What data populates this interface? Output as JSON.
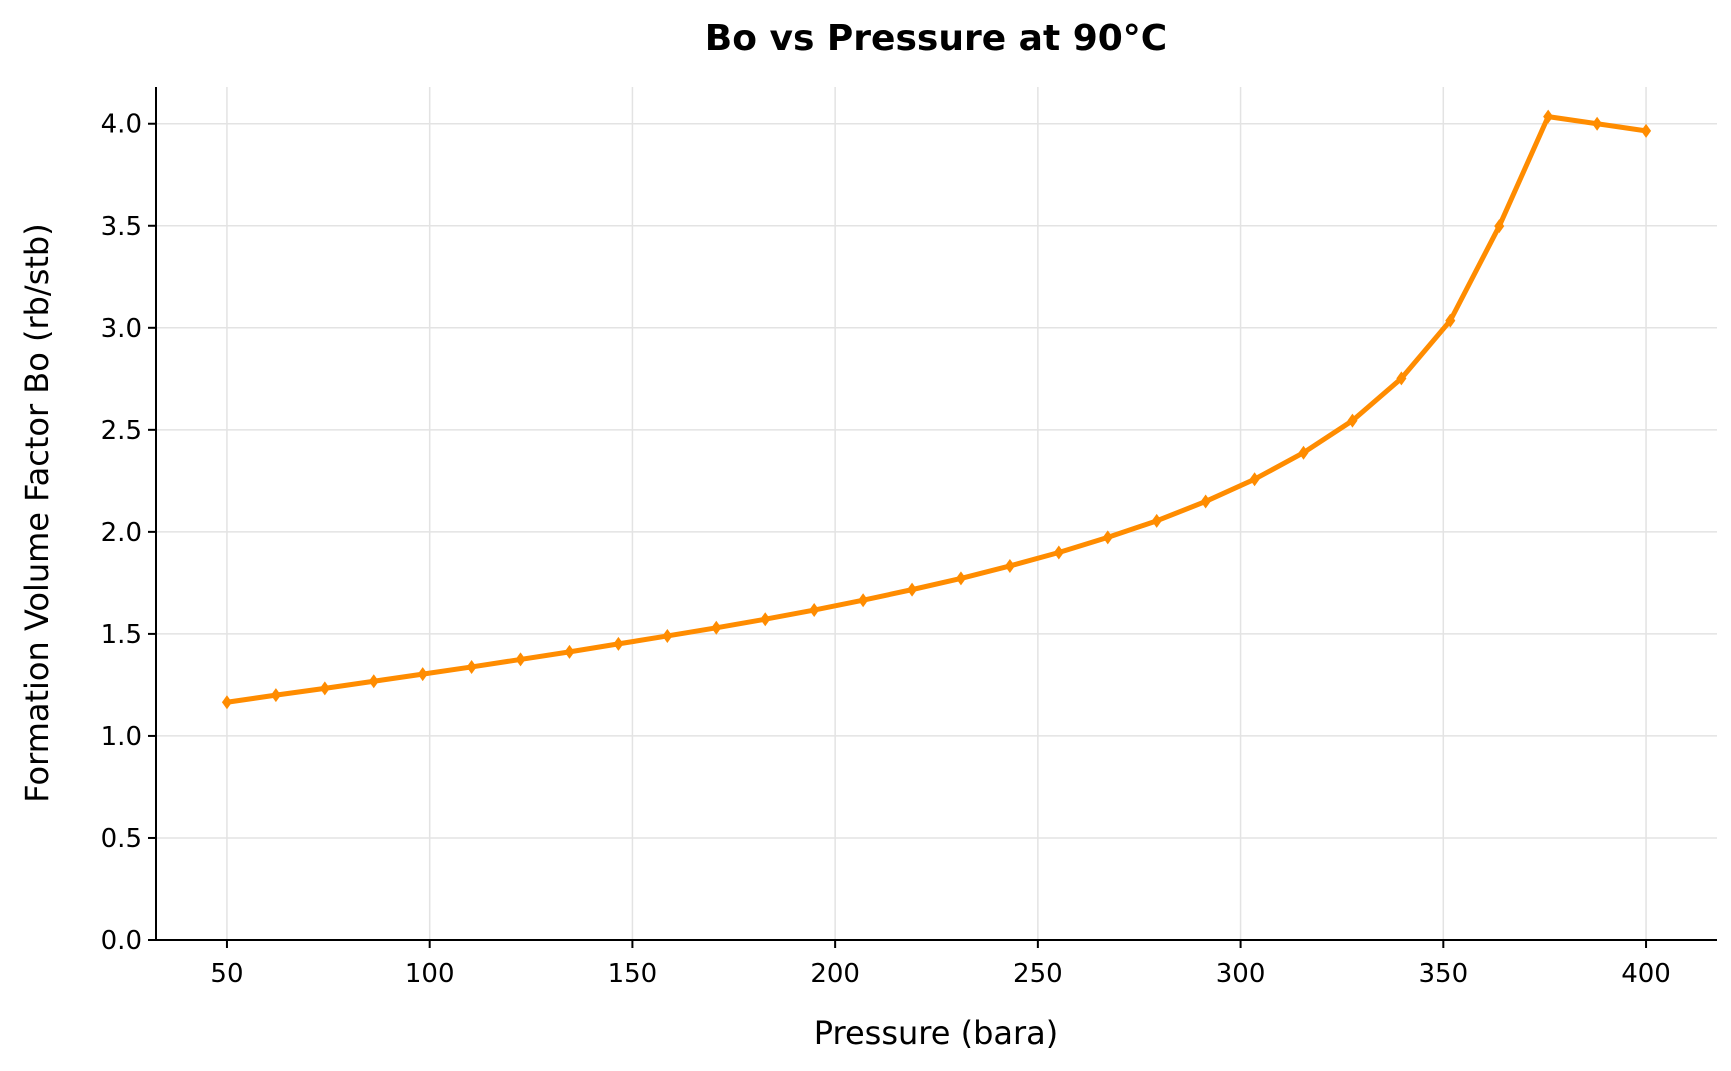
{
  "chart_data": {
    "type": "line",
    "title": "Bo vs Pressure at 90°C",
    "xlabel": "Pressure (bara)",
    "ylabel": "Formation Volume Factor Bo (rb/stb)",
    "xlim": [
      32.5,
      417.5
    ],
    "ylim": [
      0,
      4.18
    ],
    "xticks": [
      50,
      100,
      150,
      200,
      250,
      300,
      350,
      400
    ],
    "xtick_labels": [
      "50",
      "100",
      "150",
      "200",
      "250",
      "300",
      "350",
      "400"
    ],
    "yticks": [
      0,
      0.5,
      1.0,
      1.5,
      2.0,
      2.5,
      3.0,
      3.5,
      4.0
    ],
    "ytick_labels": [
      "0.0",
      "0.5",
      "1.0",
      "1.5",
      "2.0",
      "2.5",
      "3.0",
      "3.5",
      "4.0"
    ],
    "grid": true,
    "color": "#ff8c00",
    "marker": "diamond",
    "series": [
      {
        "x": [
          50,
          62.07,
          74.14,
          86.21,
          98.28,
          110.34,
          122.41,
          134.48,
          146.55,
          158.62,
          170.69,
          182.76,
          194.83,
          206.9,
          218.97,
          231.03,
          243.1,
          255.17,
          267.24,
          279.31,
          291.38,
          303.45,
          315.52,
          327.59,
          339.66,
          351.72,
          363.79,
          375.86,
          387.93,
          400
        ],
        "values": [
          1.165,
          1.2,
          1.233,
          1.268,
          1.303,
          1.338,
          1.375,
          1.412,
          1.451,
          1.49,
          1.53,
          1.572,
          1.617,
          1.665,
          1.717,
          1.772,
          1.833,
          1.899,
          1.973,
          2.054,
          2.149,
          2.258,
          2.388,
          2.545,
          2.752,
          3.035,
          3.498,
          4.035,
          4.0,
          3.965
        ]
      }
    ]
  }
}
